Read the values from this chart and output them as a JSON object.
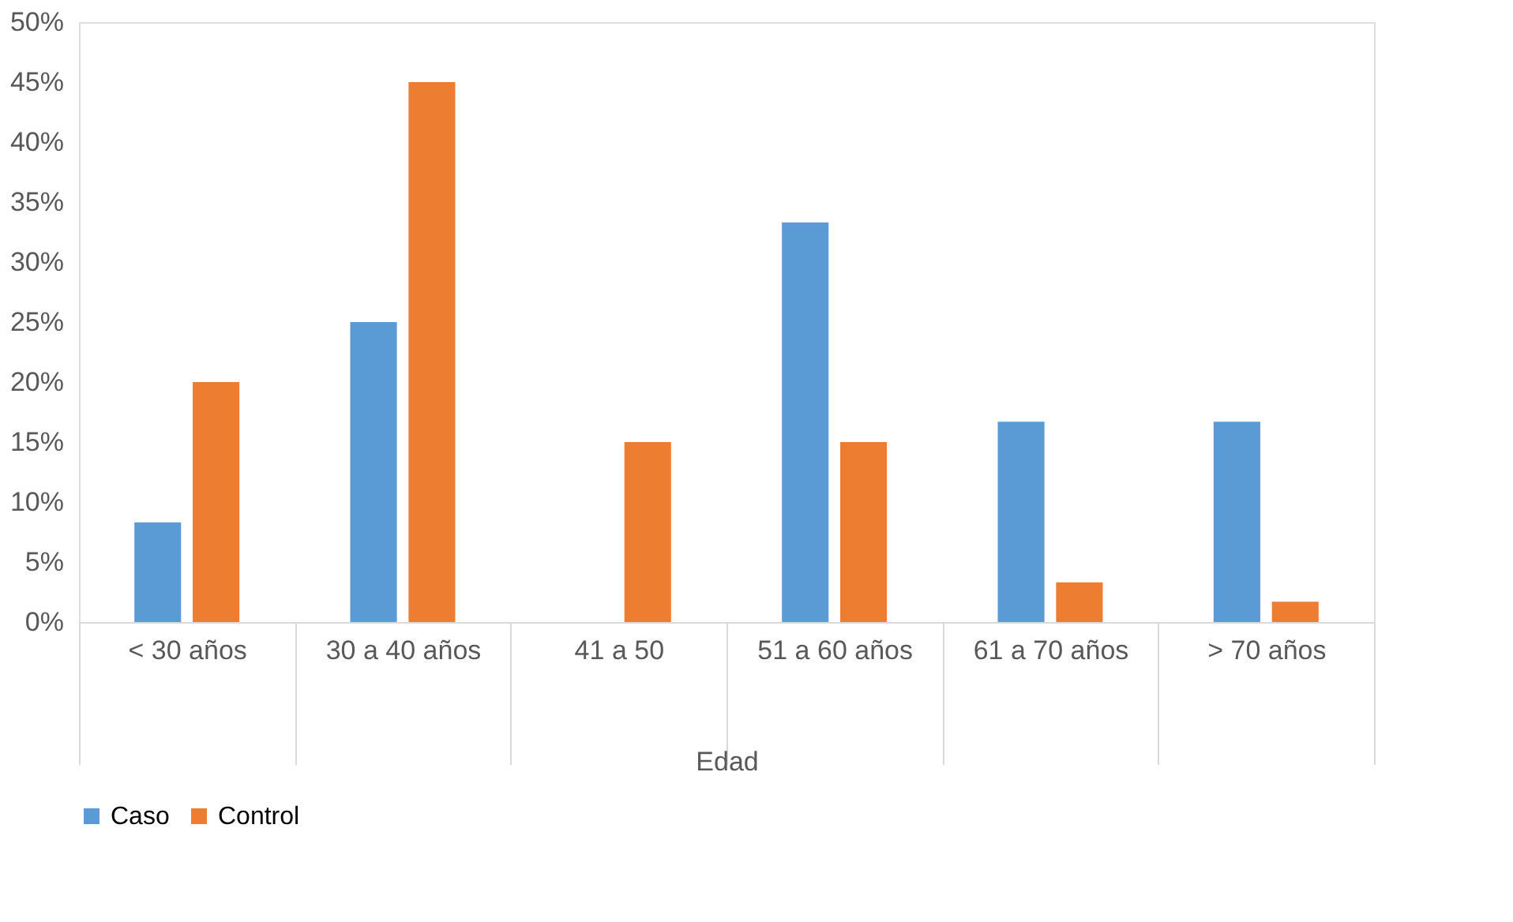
{
  "chart_data": {
    "type": "bar",
    "xlabel": "Edad",
    "categories": [
      "< 30 años",
      "30 a 40 años",
      "41 a 50",
      "51 a 60 años",
      "61 a 70 años",
      "> 70 años"
    ],
    "series": [
      {
        "name": "Caso",
        "color": "#5b9bd5",
        "values": [
          8.3,
          25,
          0,
          33.3,
          16.7,
          16.7
        ]
      },
      {
        "name": "Control",
        "color": "#ed7d31",
        "values": [
          20,
          45,
          15,
          15,
          3.3,
          1.7
        ]
      }
    ],
    "ylim": [
      0,
      50
    ],
    "yticks": [
      {
        "value": 0,
        "label": "0%"
      },
      {
        "value": 5,
        "label": "5%"
      },
      {
        "value": 10,
        "label": "10%"
      },
      {
        "value": 15,
        "label": "15%"
      },
      {
        "value": 20,
        "label": "20%"
      },
      {
        "value": 25,
        "label": "25%"
      },
      {
        "value": 30,
        "label": "30%"
      },
      {
        "value": 35,
        "label": "35%"
      },
      {
        "value": 40,
        "label": "40%"
      },
      {
        "value": 45,
        "label": "45%"
      },
      {
        "value": 50,
        "label": "50%"
      }
    ],
    "grid": false,
    "legend": "bottom"
  }
}
